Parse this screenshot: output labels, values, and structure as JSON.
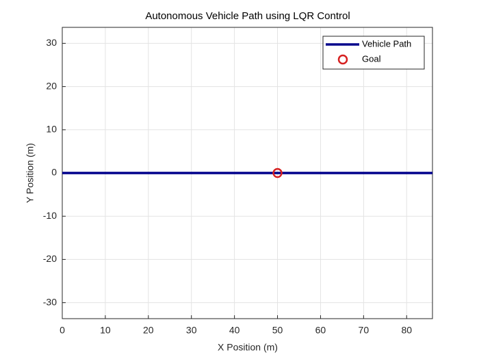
{
  "chart_data": {
    "type": "line",
    "title": "Autonomous Vehicle Path using LQR Control",
    "x_label": "X Position (m)",
    "y_label": "Y Position (m)",
    "series": [
      {
        "name": "Vehicle Path",
        "color": "#00008b",
        "mode": "line",
        "x": [
          0,
          86
        ],
        "values": [
          0,
          0
        ]
      },
      {
        "name": "Goal",
        "color": "#d62020",
        "mode": "marker",
        "x": [
          50
        ],
        "values": [
          0
        ]
      }
    ],
    "xlim": [
      0,
      86
    ],
    "ylim": [
      -33.7,
      33.7
    ],
    "xticks": [
      0,
      10,
      20,
      30,
      40,
      50,
      60,
      70,
      80
    ],
    "yticks": [
      -30,
      -20,
      -10,
      0,
      10,
      20,
      30
    ],
    "grid": true,
    "legend": "northeast"
  }
}
